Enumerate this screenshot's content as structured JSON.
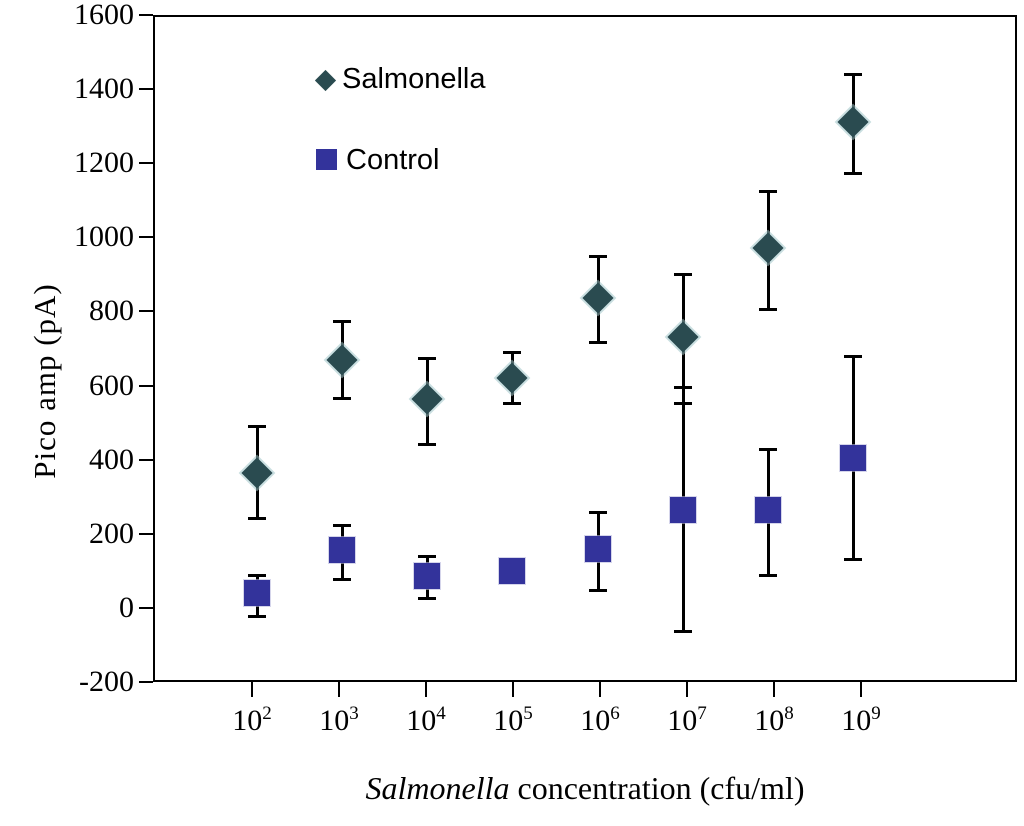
{
  "chart_data": {
    "type": "scatter",
    "title": "",
    "ylabel": "Pico amp (pA)",
    "xlabel_italic": "Salmonella",
    "xlabel_rest": " concentration (cfu/ml)",
    "x_base": "10",
    "x_exponents": [
      "2",
      "3",
      "4",
      "5",
      "6",
      "7",
      "8",
      "9"
    ],
    "categories": [
      "10^2",
      "10^3",
      "10^4",
      "10^5",
      "10^6",
      "10^7",
      "10^8",
      "10^9"
    ],
    "x_scale": "log",
    "yticks": [
      1600,
      1400,
      1200,
      1000,
      800,
      600,
      400,
      200,
      0,
      -200
    ],
    "ylim": [
      -200,
      1600
    ],
    "grid": false,
    "legend_position": "top-left-inside",
    "axis_color": "#000000",
    "error_bar_color": "#000000",
    "series": [
      {
        "name": "Salmonella",
        "marker": "diamond",
        "color": "#2a4b50",
        "values": [
          365,
          670,
          565,
          620,
          835,
          730,
          970,
          1310
        ],
        "err_low": [
          240,
          565,
          440,
          550,
          715,
          550,
          805,
          1170
        ],
        "err_high": [
          490,
          775,
          675,
          690,
          950,
          900,
          1125,
          1440
        ]
      },
      {
        "name": "Control",
        "marker": "square",
        "color": "#33339b",
        "values": [
          40,
          155,
          85,
          100,
          160,
          265,
          265,
          405
        ],
        "err_low": [
          -25,
          75,
          25,
          null,
          45,
          -65,
          85,
          130
        ],
        "err_high": [
          90,
          225,
          140,
          null,
          260,
          595,
          430,
          680
        ]
      }
    ]
  }
}
